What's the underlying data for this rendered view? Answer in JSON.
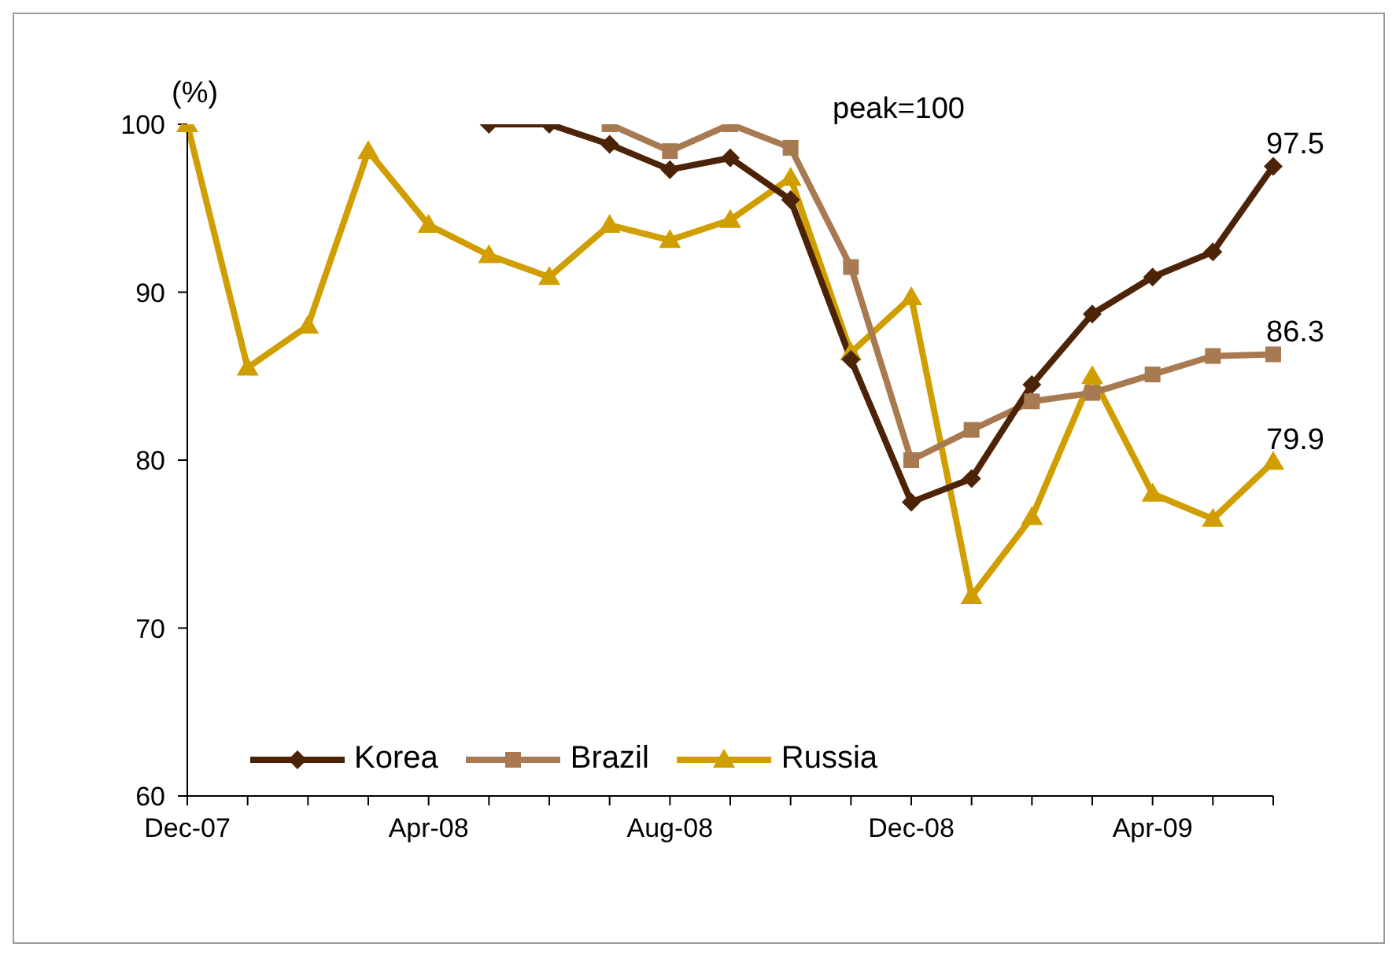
{
  "chart_data": {
    "type": "line",
    "categories": [
      "Dec-07",
      null,
      null,
      null,
      "Apr-08",
      null,
      null,
      null,
      "Aug-08",
      null,
      null,
      null,
      "Dec-08",
      null,
      null,
      null,
      "Apr-09",
      null,
      null
    ],
    "series": [
      {
        "name": "Korea",
        "color": "#4d2308",
        "marker": "diamond",
        "values": [
          null,
          null,
          null,
          null,
          null,
          100,
          100,
          98.8,
          97.3,
          98,
          95.5,
          86,
          77.5,
          78.9,
          84.5,
          88.7,
          90.9,
          92.4,
          97.5
        ],
        "value_labels": [
          null,
          null,
          null,
          null,
          null,
          null,
          null,
          null,
          null,
          null,
          null,
          null,
          null,
          null,
          null,
          null,
          null,
          null,
          "97.5"
        ]
      },
      {
        "name": "Brazil",
        "color": "#a87a52",
        "marker": "square",
        "values": [
          null,
          null,
          null,
          null,
          null,
          null,
          null,
          100,
          98.4,
          100,
          98.6,
          91.5,
          80,
          81.8,
          83.5,
          84,
          85.1,
          86.2,
          86.3
        ],
        "value_labels": [
          null,
          null,
          null,
          null,
          null,
          null,
          null,
          null,
          null,
          null,
          null,
          null,
          null,
          null,
          null,
          null,
          null,
          null,
          "86.3"
        ]
      },
      {
        "name": "Russia",
        "color": "#d09e00",
        "marker": "triangle",
        "values": [
          100,
          85.5,
          88,
          98.4,
          94,
          92.2,
          90.9,
          94,
          93.1,
          94.3,
          96.8,
          86.4,
          89.7,
          71.9,
          76.6,
          85,
          78,
          76.5,
          79.9
        ],
        "value_labels": [
          null,
          null,
          null,
          null,
          null,
          null,
          null,
          null,
          null,
          null,
          null,
          null,
          null,
          null,
          null,
          null,
          null,
          null,
          "79.9"
        ]
      }
    ],
    "ylim": [
      60,
      100
    ],
    "yticks": [
      60,
      70,
      80,
      90,
      100
    ],
    "grid": false,
    "legend": "bottom left",
    "annotations": [
      "(%)",
      "peak=100"
    ]
  }
}
